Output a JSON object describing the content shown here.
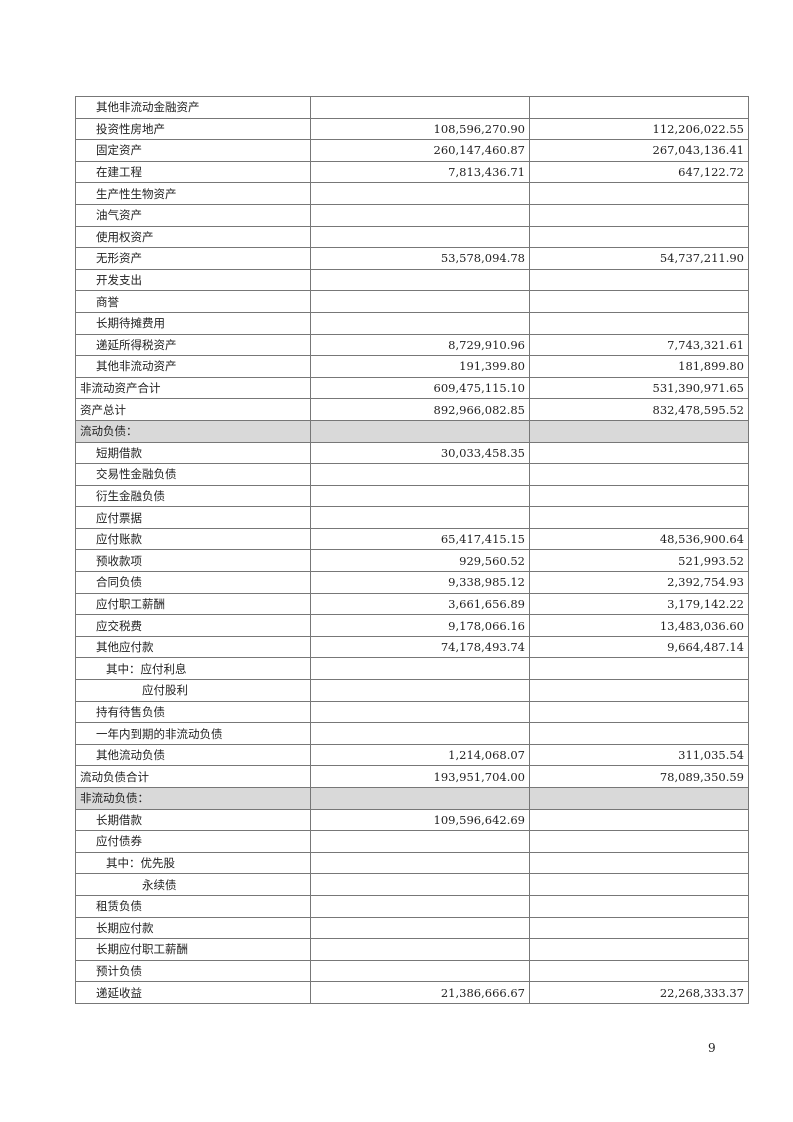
{
  "rows": [
    {
      "label": "其他非流动金融资产",
      "indent": 1,
      "v1": "",
      "v2": ""
    },
    {
      "label": "投资性房地产",
      "indent": 1,
      "v1": "108,596,270.90",
      "v2": "112,206,022.55"
    },
    {
      "label": "固定资产",
      "indent": 1,
      "v1": "260,147,460.87",
      "v2": "267,043,136.41"
    },
    {
      "label": "在建工程",
      "indent": 1,
      "v1": "7,813,436.71",
      "v2": "647,122.72"
    },
    {
      "label": "生产性生物资产",
      "indent": 1,
      "v1": "",
      "v2": ""
    },
    {
      "label": "油气资产",
      "indent": 1,
      "v1": "",
      "v2": ""
    },
    {
      "label": "使用权资产",
      "indent": 1,
      "v1": "",
      "v2": ""
    },
    {
      "label": "无形资产",
      "indent": 1,
      "v1": "53,578,094.78",
      "v2": "54,737,211.90"
    },
    {
      "label": "开发支出",
      "indent": 1,
      "v1": "",
      "v2": ""
    },
    {
      "label": "商誉",
      "indent": 1,
      "v1": "",
      "v2": ""
    },
    {
      "label": "长期待摊费用",
      "indent": 1,
      "v1": "",
      "v2": ""
    },
    {
      "label": "递延所得税资产",
      "indent": 1,
      "v1": "8,729,910.96",
      "v2": "7,743,321.61"
    },
    {
      "label": "其他非流动资产",
      "indent": 1,
      "v1": "191,399.80",
      "v2": "181,899.80"
    },
    {
      "label": "非流动资产合计",
      "indent": 0,
      "v1": "609,475,115.10",
      "v2": "531,390,971.65"
    },
    {
      "label": "资产总计",
      "indent": 0,
      "v1": "892,966,082.85",
      "v2": "832,478,595.52"
    },
    {
      "label": "流动负债：",
      "indent": 0,
      "v1": "",
      "v2": "",
      "shaded": true
    },
    {
      "label": "短期借款",
      "indent": 1,
      "v1": "30,033,458.35",
      "v2": ""
    },
    {
      "label": "交易性金融负债",
      "indent": 1,
      "v1": "",
      "v2": ""
    },
    {
      "label": "衍生金融负债",
      "indent": 1,
      "v1": "",
      "v2": ""
    },
    {
      "label": "应付票据",
      "indent": 1,
      "v1": "",
      "v2": ""
    },
    {
      "label": "应付账款",
      "indent": 1,
      "v1": "65,417,415.15",
      "v2": "48,536,900.64"
    },
    {
      "label": "预收款项",
      "indent": 1,
      "v1": "929,560.52",
      "v2": "521,993.52"
    },
    {
      "label": "合同负债",
      "indent": 1,
      "v1": "9,338,985.12",
      "v2": "2,392,754.93"
    },
    {
      "label": "应付职工薪酬",
      "indent": 1,
      "v1": "3,661,656.89",
      "v2": "3,179,142.22"
    },
    {
      "label": "应交税费",
      "indent": 1,
      "v1": "9,178,066.16",
      "v2": "13,483,036.60"
    },
    {
      "label": "其他应付款",
      "indent": 1,
      "v1": "74,178,493.74",
      "v2": "9,664,487.14"
    },
    {
      "label": "其中：应付利息",
      "indent": 2,
      "v1": "",
      "v2": ""
    },
    {
      "label": "应付股利",
      "indent": 3,
      "v1": "",
      "v2": ""
    },
    {
      "label": "持有待售负债",
      "indent": 1,
      "v1": "",
      "v2": ""
    },
    {
      "label": "一年内到期的非流动负债",
      "indent": 1,
      "v1": "",
      "v2": ""
    },
    {
      "label": "其他流动负债",
      "indent": 1,
      "v1": "1,214,068.07",
      "v2": "311,035.54"
    },
    {
      "label": "流动负债合计",
      "indent": 0,
      "v1": "193,951,704.00",
      "v2": "78,089,350.59"
    },
    {
      "label": "非流动负债：",
      "indent": 0,
      "v1": "",
      "v2": "",
      "shaded": true
    },
    {
      "label": "长期借款",
      "indent": 1,
      "v1": "109,596,642.69",
      "v2": ""
    },
    {
      "label": "应付债券",
      "indent": 1,
      "v1": "",
      "v2": ""
    },
    {
      "label": "其中：优先股",
      "indent": 2,
      "v1": "",
      "v2": ""
    },
    {
      "label": "永续债",
      "indent": 3,
      "v1": "",
      "v2": ""
    },
    {
      "label": "租赁负债",
      "indent": 1,
      "v1": "",
      "v2": ""
    },
    {
      "label": "长期应付款",
      "indent": 1,
      "v1": "",
      "v2": ""
    },
    {
      "label": "长期应付职工薪酬",
      "indent": 1,
      "v1": "",
      "v2": ""
    },
    {
      "label": "预计负债",
      "indent": 1,
      "v1": "",
      "v2": ""
    },
    {
      "label": "递延收益",
      "indent": 1,
      "v1": "21,386,666.67",
      "v2": "22,268,333.37"
    }
  ],
  "colors": {
    "shaded_row": "#d9d9d9",
    "border": "#777777"
  },
  "page_number": "9"
}
